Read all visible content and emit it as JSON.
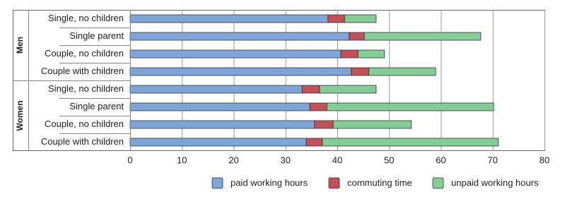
{
  "chart_data": {
    "type": "stacked-barh",
    "groups": [
      {
        "name": "Men",
        "categories": [
          "Single, no children",
          "Single parent",
          "Couple, no children",
          "Couple with children"
        ]
      },
      {
        "name": "Women",
        "categories": [
          "Single, no children",
          "Single parent",
          "Couple, no children",
          "Couple with children"
        ]
      }
    ],
    "series": [
      {
        "name": "paid working hours",
        "color": "#7fa5d8",
        "values": [
          38.2,
          42.3,
          40.7,
          42.7,
          33.2,
          34.7,
          35.6,
          34.0
        ]
      },
      {
        "name": "commuting time",
        "color": "#c0505a",
        "values": [
          3.2,
          2.9,
          3.3,
          3.4,
          3.4,
          3.3,
          3.6,
          3.1
        ]
      },
      {
        "name": "unpaid working hours",
        "color": "#86cc99",
        "values": [
          6.1,
          22.5,
          5.1,
          12.9,
          10.9,
          32.2,
          15.1,
          34.0
        ]
      }
    ],
    "xlim": [
      0,
      80
    ],
    "xticks": [
      0,
      10,
      20,
      30,
      40,
      50,
      60,
      70,
      80
    ],
    "grid": true
  }
}
